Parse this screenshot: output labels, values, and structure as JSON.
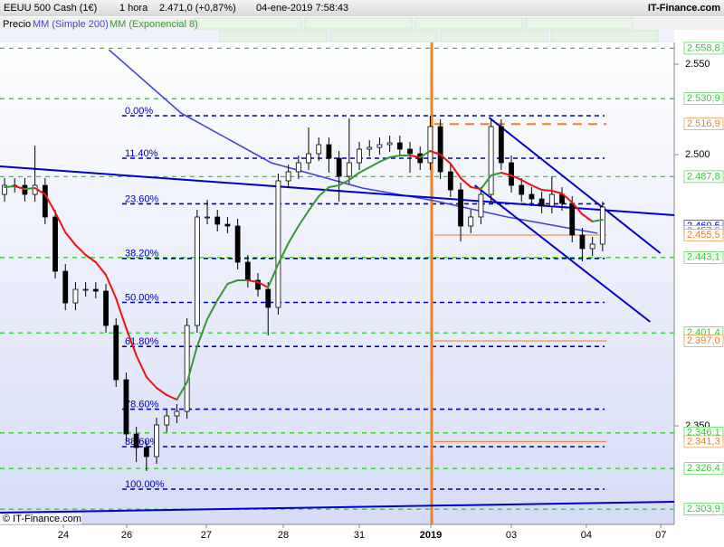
{
  "chart_data": {
    "type": "candlestick",
    "title": "EEUU 500 Cash (1€)",
    "interval": "1 hora",
    "last_price": "2.471,0 (+0,87%)",
    "datetime": "04-ene-2019 7:58:43",
    "brand": "IT-Finance.com",
    "footer": "© IT-Finance.com",
    "xlim": [
      -0.45,
      66.07
    ],
    "ylim": [
      2295.5,
      2562
    ],
    "yticks": [
      {
        "value": 2550,
        "label": "2.550"
      },
      {
        "value": 2500,
        "label": "2.500"
      },
      {
        "value": 2350,
        "label": "2.350"
      }
    ],
    "xticks": [
      {
        "value": 5.8,
        "label": "24"
      },
      {
        "value": 12.05,
        "label": "26"
      },
      {
        "value": 19.9,
        "label": "27"
      },
      {
        "value": 27.5,
        "label": "28"
      },
      {
        "value": 35.0,
        "label": "31"
      },
      {
        "value": 42.05,
        "label": "2019"
      },
      {
        "value": 50.0,
        "label": "03"
      },
      {
        "value": 57.4,
        "label": "04"
      },
      {
        "value": 64.75,
        "label": "07"
      }
    ],
    "vline": 42.14,
    "vline_color": "#f08020",
    "x": [
      0,
      1,
      2,
      3,
      4,
      5,
      6,
      7,
      8,
      9,
      10,
      11,
      12,
      13,
      14,
      15,
      16,
      17,
      18,
      19,
      20,
      21,
      22,
      23,
      24,
      25,
      26,
      27,
      28,
      29,
      30,
      31,
      32,
      33,
      34,
      35,
      36,
      37,
      38,
      39,
      40,
      41,
      42,
      43,
      44,
      45,
      46,
      47,
      48,
      49,
      50,
      51,
      52,
      53,
      54,
      55,
      56,
      57,
      58,
      59
    ],
    "series": [
      {
        "name": "Precio",
        "color": "#000000",
        "open": [
          2478,
          2483,
          2483,
          2478,
          2483,
          2465.5,
          2435.5,
          2418,
          2425.5,
          2425.5,
          2424.5,
          2405.5,
          2375.5,
          2345.5,
          2338,
          2333,
          2350.5,
          2355.5,
          2358,
          2405.5,
          2465.5,
          2465.5,
          2461.5,
          2460.5,
          2440.5,
          2430.5,
          2425.5,
          2415.5,
          2485.5,
          2490.5,
          2495.5,
          2500.5,
          2505.5,
          2498,
          2488,
          2495.5,
          2503,
          2504,
          2505.5,
          2506.5,
          2503,
          2500.5,
          2495.5,
          2515.5,
          2490.5,
          2480.5,
          2460.5,
          2465.5,
          2478,
          2515.5,
          2495.5,
          2483,
          2478,
          2475.5,
          2471.5,
          2478,
          2473,
          2455.5,
          2448,
          2450.5
        ],
        "high": [
          2487,
          2487,
          2487,
          2505,
          2487,
          2469.5,
          2439.5,
          2429.5,
          2429.5,
          2429.5,
          2428.5,
          2409.5,
          2379.5,
          2349.5,
          2342,
          2354.5,
          2359.5,
          2362,
          2409.5,
          2469.5,
          2475,
          2469.5,
          2465.5,
          2464.5,
          2444.5,
          2434.5,
          2429.5,
          2489.5,
          2494.5,
          2499.5,
          2515,
          2509.5,
          2509.5,
          2502,
          2520,
          2507,
          2508,
          2509.5,
          2510.5,
          2510.5,
          2507,
          2504.5,
          2521.5,
          2519.5,
          2494.5,
          2484.5,
          2469.5,
          2482,
          2520,
          2519.5,
          2499.5,
          2487,
          2482,
          2479.5,
          2488,
          2482,
          2477,
          2459.5,
          2454.5,
          2474
        ],
        "low": [
          2474,
          2479,
          2474,
          2474,
          2461.5,
          2431.5,
          2414,
          2414,
          2421.5,
          2420.5,
          2401.5,
          2371.5,
          2341.5,
          2330,
          2325,
          2329,
          2346.5,
          2351.5,
          2354,
          2401.5,
          2461.5,
          2457.5,
          2456.5,
          2436.5,
          2426.5,
          2421.5,
          2400,
          2411.5,
          2481.5,
          2486.5,
          2491.5,
          2496.5,
          2490,
          2474,
          2484,
          2491.5,
          2499,
          2500,
          2501.5,
          2499,
          2490,
          2491.5,
          2491.5,
          2486.5,
          2476.5,
          2452,
          2456.5,
          2461.5,
          2474,
          2491.5,
          2479,
          2474,
          2471.5,
          2467.5,
          2467.5,
          2469,
          2451.5,
          2441,
          2444,
          2446.5
        ],
        "close": [
          2483,
          2483,
          2478,
          2483,
          2465.5,
          2435.5,
          2418,
          2425.5,
          2425.5,
          2424.5,
          2405.5,
          2375.5,
          2345.5,
          2338,
          2333,
          2350.5,
          2355.5,
          2358,
          2405.5,
          2465.5,
          2465.5,
          2461.5,
          2460.5,
          2440.5,
          2430.5,
          2425.5,
          2415.5,
          2485.5,
          2490.5,
          2495.5,
          2500.5,
          2505.5,
          2498,
          2488,
          2495.5,
          2503,
          2504,
          2505.5,
          2506.5,
          2503,
          2500.5,
          2495.5,
          2515.5,
          2490.5,
          2480.5,
          2460.5,
          2465.5,
          2478,
          2515.5,
          2495.5,
          2483,
          2478,
          2475.5,
          2471.5,
          2478,
          2473,
          2455.5,
          2448,
          2450.5,
          2471
        ]
      }
    ],
    "indicators": [
      {
        "name": "MM (Simple 200)",
        "color": "#4444dd",
        "x": [
          10.3,
          17.4,
          26.3,
          35.3,
          42.4,
          49.6,
          58.5
        ],
        "values": [
          2558,
          2523,
          2495.5,
          2481.5,
          2474.5,
          2465.5,
          2456.5
        ]
      },
      {
        "name": "MM (Exponencial 8)",
        "color": "#339933",
        "down_color": "#ee1111",
        "x": [
          0,
          1,
          2,
          3,
          4,
          5,
          6,
          7,
          8,
          9,
          10,
          11,
          12,
          13,
          14,
          15,
          16,
          17,
          18,
          19,
          20,
          21,
          22,
          23,
          24,
          25,
          26,
          27,
          28,
          29,
          30,
          31,
          32,
          33,
          34,
          35,
          36,
          37,
          38,
          39,
          40,
          41,
          42,
          43,
          44,
          45,
          46,
          47,
          48,
          49,
          50,
          51,
          52,
          53,
          54,
          55,
          56,
          57,
          58,
          59
        ],
        "values": [
          2482,
          2482.5,
          2481,
          2481.5,
          2478,
          2468,
          2457,
          2450,
          2444.5,
          2440.5,
          2433.5,
          2420.5,
          2404,
          2389,
          2377,
          2371,
          2367,
          2364.5,
          2374,
          2394,
          2409,
          2419.5,
          2428.5,
          2430.5,
          2430.5,
          2429.5,
          2426.5,
          2439.5,
          2451,
          2460.5,
          2469,
          2477,
          2482,
          2483,
          2486,
          2490,
          2493,
          2496,
          2498.5,
          2499.5,
          2499.5,
          2498.5,
          2502,
          2500,
          2495,
          2487,
          2482,
          2481,
          2488.5,
          2490,
          2488.5,
          2486,
          2483,
          2480.5,
          2480,
          2478.5,
          2473.5,
          2467,
          2463,
          2464
        ]
      }
    ],
    "trendlines": [
      {
        "color": "#0000cc",
        "x": [
          -0.45,
          66.07
        ],
        "values": [
          2493.5,
          2466.5
        ]
      },
      {
        "color": "#0000cc",
        "x": [
          47.8,
          64.7
        ],
        "values": [
          2520.5,
          2445.5
        ]
      },
      {
        "color": "#0000cc",
        "x": [
          46.4,
          63.7
        ],
        "values": [
          2483,
          2407.5
        ]
      },
      {
        "color": "#0000cc",
        "x": [
          -0.45,
          66.07
        ],
        "values": [
          2302,
          2308
        ]
      }
    ],
    "fibonacci": {
      "color": "#0000aa",
      "x": [
        11.6,
        59.2
      ],
      "levels": [
        {
          "value": 2521.5,
          "label": "0.00%"
        },
        {
          "value": 2498,
          "label": "11.40%"
        },
        {
          "value": 2472.8,
          "label": "23.60%"
        },
        {
          "value": 2442.6,
          "label": "38.20%"
        },
        {
          "value": 2418.25,
          "label": "50.00%"
        },
        {
          "value": 2393.9,
          "label": "61.80%"
        },
        {
          "value": 2359.2,
          "label": "78.60%"
        },
        {
          "value": 2338.5,
          "label": "88.60%"
        },
        {
          "value": 2315,
          "label": "100.00%"
        }
      ]
    },
    "levels": [
      {
        "value": 2558.8,
        "label": "2.558,8",
        "color": "#33cc33",
        "style": "dashed"
      },
      {
        "value": 2530.9,
        "label": "2.530,9",
        "color": "#33cc33",
        "style": "dashed"
      },
      {
        "value": 2516.9,
        "label": "2.516,9",
        "color": "#f08020",
        "style": "dashed-bold",
        "from": 42.4
      },
      {
        "value": 2487.8,
        "label": "2.487,8",
        "color": "#33cc33",
        "style": "dashed"
      },
      {
        "value": 2460.5,
        "label": "2.460,5",
        "color": "#0000cc",
        "style": "none"
      },
      {
        "value": 2457.6,
        "label": "2.457,6",
        "color": "#8888aa",
        "style": "none"
      },
      {
        "value": 2455.5,
        "label": "2.455,5",
        "color": "#f08020",
        "style": "solid",
        "from": 42.4
      },
      {
        "value": 2443.1,
        "label": "2.443,1",
        "color": "#33cc33",
        "style": "dashed"
      },
      {
        "value": 2401.4,
        "label": "2.401,4",
        "color": "#33cc33",
        "style": "dashed"
      },
      {
        "value": 2397.0,
        "label": "2.397,0",
        "color": "#f08020",
        "style": "solid",
        "from": 42.4
      },
      {
        "value": 2346.1,
        "label": "2.346,1",
        "color": "#33cc33",
        "style": "dashed"
      },
      {
        "value": 2341.3,
        "label": "2.341,3",
        "color": "#f08020",
        "style": "solid",
        "from": 42.4
      },
      {
        "value": 2326.4,
        "label": "2.326,4",
        "color": "#33cc33",
        "style": "dashed"
      },
      {
        "value": 2303.9,
        "label": "2.303,9",
        "color": "#33cc33",
        "style": "dashed"
      }
    ]
  }
}
